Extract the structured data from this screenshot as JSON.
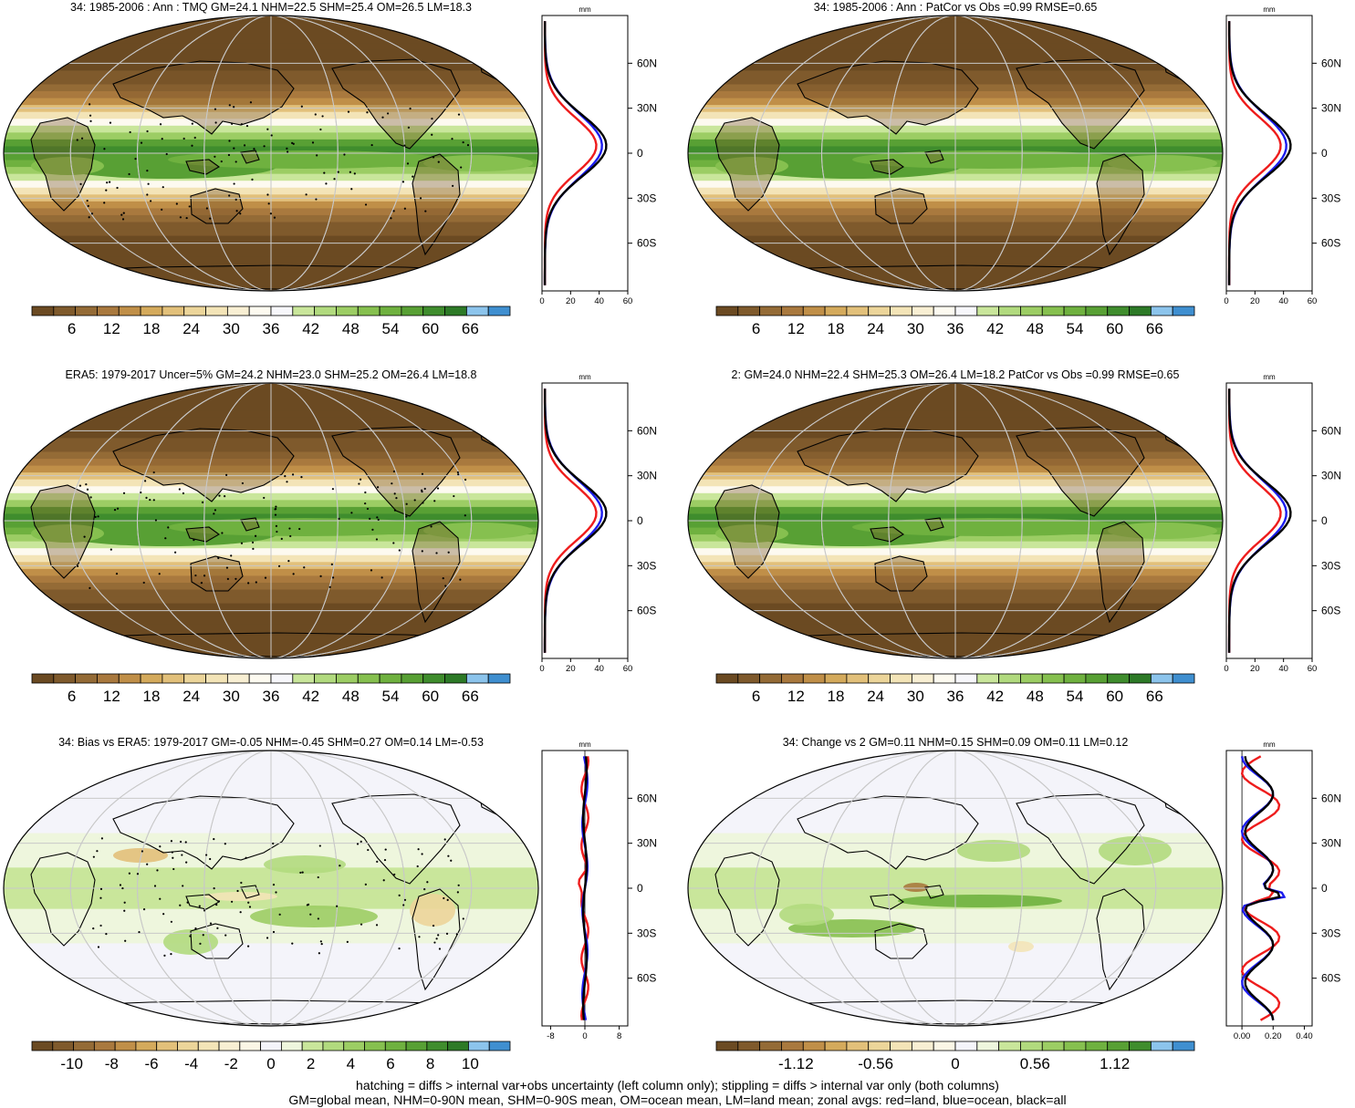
{
  "chart_data": [
    {
      "type": "heatmap",
      "title": "34: 1985-2006 : Ann : TMQ GM=24.1 NHM=22.5 SHM=25.4 OM=26.5 LM=18.3",
      "colorbar_ticks": [
        "6",
        "12",
        "18",
        "24",
        "30",
        "36",
        "42",
        "48",
        "54",
        "60",
        "66"
      ],
      "zonal": {
        "unit": "mm",
        "xticks": [
          "0",
          "20",
          "40",
          "60"
        ],
        "xlim": [
          0,
          60
        ],
        "lat_ticks": [
          "60N",
          "30N",
          "0",
          "30S",
          "60S"
        ]
      }
    },
    {
      "type": "heatmap",
      "title": "34: 1985-2006 : Ann : PatCor vs Obs =0.99 RMSE=0.65",
      "colorbar_ticks": [
        "6",
        "12",
        "18",
        "24",
        "30",
        "36",
        "42",
        "48",
        "54",
        "60",
        "66"
      ],
      "zonal": {
        "unit": "mm",
        "xticks": [
          "0",
          "20",
          "40",
          "60"
        ],
        "xlim": [
          0,
          60
        ],
        "lat_ticks": [
          "60N",
          "30N",
          "0",
          "30S",
          "60S"
        ]
      }
    },
    {
      "type": "heatmap",
      "title": "ERA5: 1979-2017 Uncer=5% GM=24.2 NHM=23.0 SHM=25.2 OM=26.4 LM=18.8",
      "colorbar_ticks": [
        "6",
        "12",
        "18",
        "24",
        "30",
        "36",
        "42",
        "48",
        "54",
        "60",
        "66"
      ],
      "zonal": {
        "unit": "mm",
        "xticks": [
          "0",
          "20",
          "40",
          "60"
        ],
        "xlim": [
          0,
          60
        ],
        "lat_ticks": [
          "60N",
          "30N",
          "0",
          "30S",
          "60S"
        ]
      }
    },
    {
      "type": "heatmap",
      "title": "2: GM=24.0 NHM=22.4 SHM=25.3 OM=26.4 LM=18.2 PatCor vs Obs =0.99 RMSE=0.65",
      "colorbar_ticks": [
        "6",
        "12",
        "18",
        "24",
        "30",
        "36",
        "42",
        "48",
        "54",
        "60",
        "66"
      ],
      "zonal": {
        "unit": "mm",
        "xticks": [
          "0",
          "20",
          "40",
          "60"
        ],
        "xlim": [
          0,
          60
        ],
        "lat_ticks": [
          "60N",
          "30N",
          "0",
          "30S",
          "60S"
        ]
      }
    },
    {
      "type": "heatmap",
      "title": "34: Bias vs ERA5: 1979-2017 GM=-0.05 NHM=-0.45 SHM=0.27 OM=0.14 LM=-0.53",
      "colorbar_ticks": [
        "-10",
        "-8",
        "-6",
        "-4",
        "-2",
        "0",
        "2",
        "4",
        "6",
        "8",
        "10"
      ],
      "zonal": {
        "unit": "mm",
        "xticks": [
          "-8",
          "0",
          "8"
        ],
        "xlim": [
          -10,
          10
        ],
        "lat_ticks": [
          "60N",
          "30N",
          "0",
          "30S",
          "60S"
        ]
      }
    },
    {
      "type": "heatmap",
      "title": "34: Change vs 2 GM=0.11 NHM=0.15 SHM=0.09 OM=0.11 LM=0.12",
      "colorbar_ticks": [
        "-1.12",
        "-0.56",
        "0",
        "0.56",
        "1.12"
      ],
      "zonal": {
        "unit": "mm",
        "xticks": [
          "0.00",
          "0.20",
          "0.40"
        ],
        "xlim": [
          -0.1,
          0.45
        ],
        "lat_ticks": [
          "60N",
          "30N",
          "0",
          "30S",
          "60S"
        ]
      }
    }
  ],
  "palettes": {
    "abs": [
      "#6b4a22",
      "#7f5a2c",
      "#946b36",
      "#a9793e",
      "#c08f48",
      "#d4aa5c",
      "#e2c07a",
      "#ecd59a",
      "#f3e4b7",
      "#f8efd3",
      "#fdfaf0",
      "#f7f7fb",
      "#c9e69b",
      "#b1da7e",
      "#9ccd64",
      "#86c04f",
      "#6fb13f",
      "#58a034",
      "#3f8d2d",
      "#2d7a27",
      "#8cc4ec",
      "#3f8fd0"
    ],
    "bias": [
      "#6b4a22",
      "#7f5a2c",
      "#946b36",
      "#a9793e",
      "#c08f48",
      "#d4aa5c",
      "#e2c07a",
      "#ecd59a",
      "#f3e4b7",
      "#f8efd3",
      "#fbf6e6",
      "#f4f4fa",
      "#eef6dd",
      "#c9e69b",
      "#b1da7e",
      "#9ccd64",
      "#86c04f",
      "#6fb13f",
      "#58a034",
      "#3f8d2d",
      "#2d7a27",
      "#8cc4ec",
      "#3f8fd0"
    ],
    "change": [
      "#6b4a22",
      "#7f5a2c",
      "#946b36",
      "#a9793e",
      "#c08f48",
      "#d4aa5c",
      "#e2c07a",
      "#ecd59a",
      "#f3e4b7",
      "#f8efd3",
      "#fbf6e6",
      "#f4f4fa",
      "#eef6dd",
      "#c9e69b",
      "#b1da7e",
      "#9ccd64",
      "#86c04f",
      "#6fb13f",
      "#58a034",
      "#3f8d2d",
      "#8cc4ec",
      "#3f8fd0"
    ]
  },
  "line_colors": {
    "land": "#ee1c1c",
    "ocean": "#1c1cee",
    "all": "#000000"
  },
  "footnotes": {
    "line1": "hatching = diffs > internal var+obs uncertainty (left column only); stippling = diffs > internal var only (both columns)",
    "line2": "GM=global mean, NHM=0-90N mean, SHM=0-90S mean, OM=ocean mean, LM=land mean; zonal avgs: red=land, blue=ocean, black=all"
  }
}
